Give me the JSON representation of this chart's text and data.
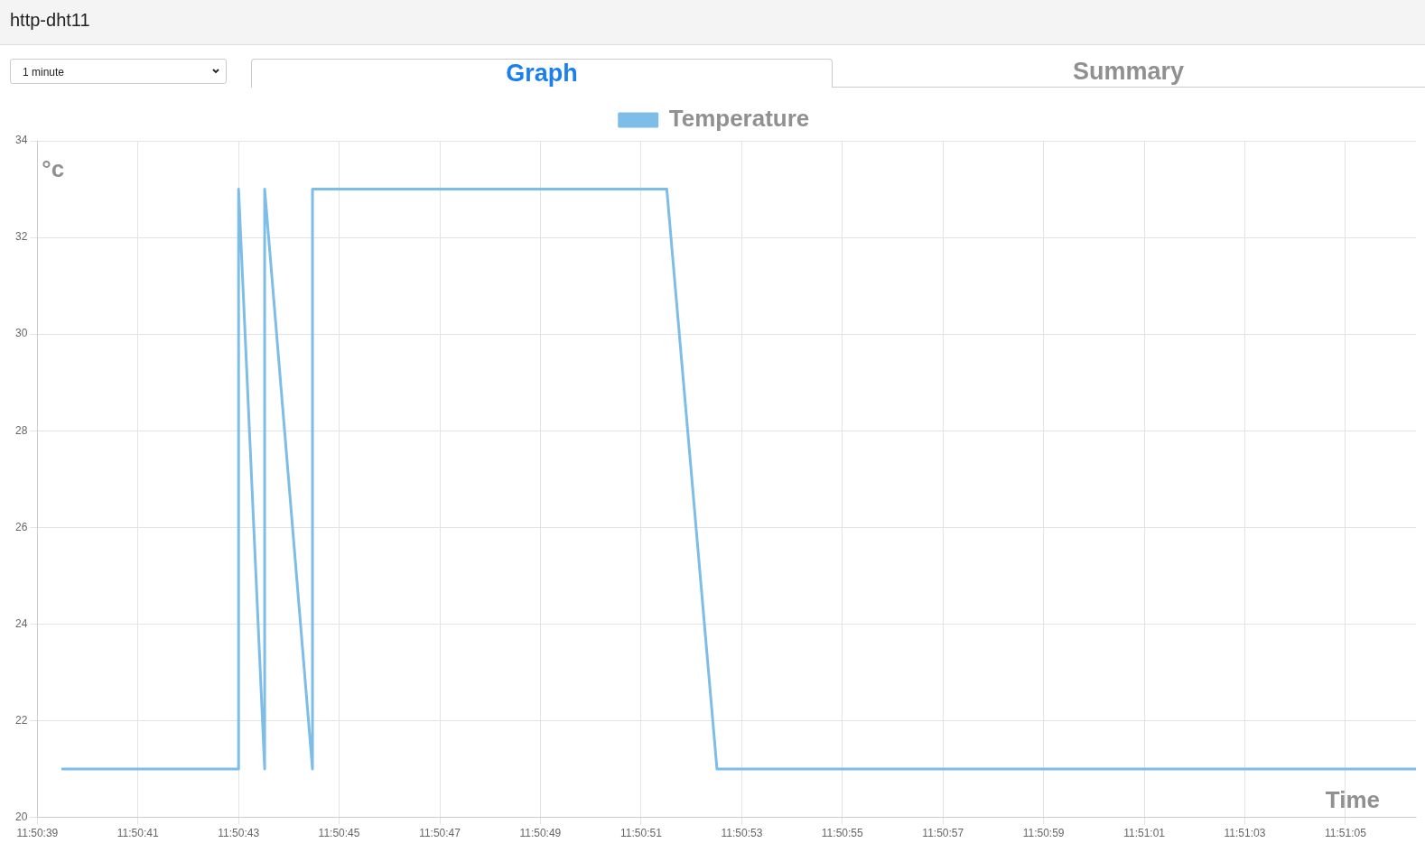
{
  "chart_data": {
    "type": "line",
    "title": "http-dht11",
    "xlabel": "Time",
    "ylabel": "°c",
    "annotations": [
      "1 minute",
      "Graph",
      "Summary"
    ],
    "series": [
      {
        "name": "Temperature",
        "color": "#7dbde8",
        "x": [
          11.8443,
          11.845278,
          11.845278,
          11.845422,
          11.845422,
          11.845686,
          11.845686,
          11.845961,
          11.847642,
          11.847919,
          11.851778
        ],
        "values": [
          21,
          21,
          33,
          21,
          33,
          21,
          33,
          33,
          33,
          21,
          21
        ]
      }
    ],
    "xlim": [
      11.844167,
      11.851778
    ],
    "xticks": [
      {
        "value": 11.844167,
        "label": "11:50:39"
      },
      {
        "value": 11.844722,
        "label": "11:50:41"
      },
      {
        "value": 11.845278,
        "label": "11:50:43"
      },
      {
        "value": 11.845833,
        "label": "11:50:45"
      },
      {
        "value": 11.846389,
        "label": "11:50:47"
      },
      {
        "value": 11.846944,
        "label": "11:50:49"
      },
      {
        "value": 11.8475,
        "label": "11:50:51"
      },
      {
        "value": 11.848056,
        "label": "11:50:53"
      },
      {
        "value": 11.848611,
        "label": "11:50:55"
      },
      {
        "value": 11.849167,
        "label": "11:50:57"
      },
      {
        "value": 11.849722,
        "label": "11:50:59"
      },
      {
        "value": 11.850278,
        "label": "11:51:01"
      },
      {
        "value": 11.850833,
        "label": "11:51:03"
      },
      {
        "value": 11.851389,
        "label": "11:51:05"
      }
    ],
    "ylim": [
      20,
      34
    ],
    "yticks": [
      20,
      22,
      24,
      26,
      28,
      30,
      32,
      34
    ],
    "grid": true,
    "legend": "top",
    "marker": "none",
    "line_style": "solid"
  }
}
